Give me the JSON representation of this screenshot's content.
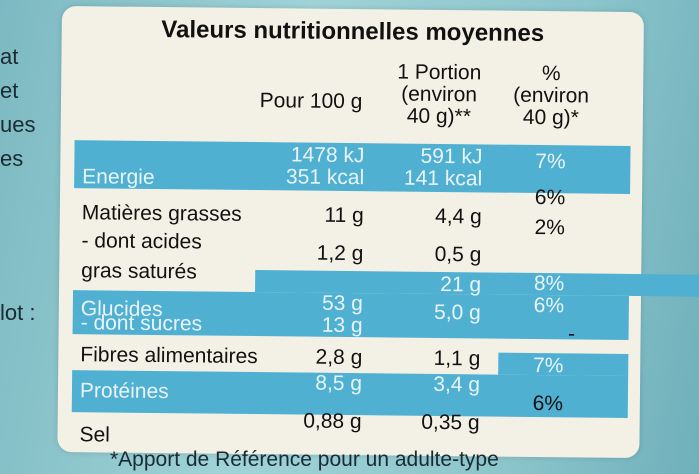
{
  "title": "Valeurs nutritionnelles moyennes",
  "headers": {
    "per100": "Pour 100 g",
    "portion": [
      "1 Portion",
      "(environ",
      "40 g)**"
    ],
    "percent": [
      "%",
      "(environ",
      "40 g)*"
    ]
  },
  "rows": [
    {
      "label": "Energie",
      "per100": [
        "1478 kJ",
        "351 kcal"
      ],
      "portion": [
        "591 kJ",
        "141 kcal"
      ],
      "percent": [
        "7%",
        "6%"
      ]
    },
    {
      "label": "Matières grasses",
      "per100": "11 g",
      "portion": "4,4 g",
      "percent": "2%"
    },
    {
      "label": "- dont acides gras saturés",
      "label_lines": [
        "- dont acides",
        "gras saturés"
      ],
      "per100": "1,2 g",
      "portion": "0,5 g",
      "percent": "8%"
    },
    {
      "label": "Glucides",
      "per100": "53 g",
      "portion": "21 g",
      "percent": "6%"
    },
    {
      "label": "- dont sucres",
      "per100": "13 g",
      "portion": "5,0 g",
      "percent": "-"
    },
    {
      "label": "Fibres alimentaires",
      "per100": "2,8 g",
      "portion": "1,1 g",
      "percent": ""
    },
    {
      "label": "Protéines",
      "per100": "8,5 g",
      "portion": "3,4 g",
      "percent": "7%"
    },
    {
      "label": "Sel",
      "per100": "0,88 g",
      "portion": "0,35 g",
      "percent": "6%"
    }
  ],
  "footer": "*Apport de Référence pour un adulte-type",
  "edge_fragments": [
    "at",
    "et",
    "ues",
    "es"
  ],
  "edge_lot": "lot :",
  "colors": {
    "band": "#4fb0d2",
    "panel": "#f3f1e6",
    "background": "#8fc9cf"
  }
}
